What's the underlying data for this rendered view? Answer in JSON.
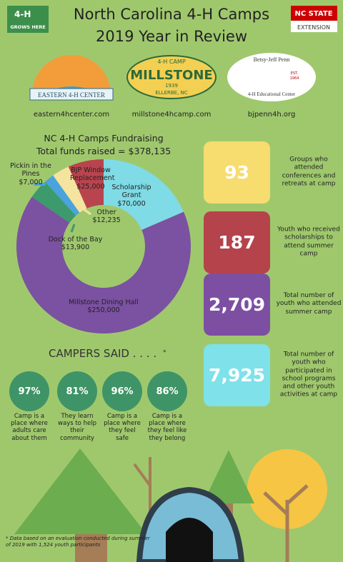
{
  "header": {
    "title_line1": "North Carolina 4-H Camps",
    "title_line2": "2019 Year in Review",
    "badge_4h": "4-H",
    "badge_grows": "GROWS HERE",
    "ncstate": "NC STATE",
    "extension": "EXTENSION"
  },
  "camps": [
    {
      "name": "EASTERN 4-H CENTER",
      "url": "eastern4hcenter.com"
    },
    {
      "top": "4-H CAMP",
      "name": "MILLSTONE",
      "year": "1939",
      "bottom": "ELLERBE, NC",
      "url": "millstone4hcamp.com"
    },
    {
      "name": "Betsy-Jeff Penn",
      "est": "EST.",
      "year": "1964",
      "sub": "4-H Educational Center",
      "url": "bjpenn4h.org"
    }
  ],
  "chart_data": {
    "type": "donut",
    "title": "NC 4-H Camps Fundraising",
    "subtitle": "Total funds raised = $378,135",
    "categories": [
      "Scholarship Grant",
      "Millstone Dining Hall",
      "Dock of the Bay",
      "Pickin in the Pines",
      "Other",
      "BJP Window Replacement"
    ],
    "values": [
      70000,
      250000,
      13900,
      7000,
      12235,
      25000
    ],
    "value_labels": [
      "$70,000",
      "$250,000",
      "$13,900",
      "$7,000",
      "$12,235",
      "$25,000"
    ],
    "colors": [
      "#7fdbe6",
      "#7b51a1",
      "#3c9a6c",
      "#4aa3dc",
      "#f5e3a0",
      "#b8444e"
    ]
  },
  "stats": [
    {
      "value": "93",
      "label": "Groups who attended conferences and retreats at camp",
      "color": "#f7dc6f"
    },
    {
      "value": "187",
      "label": "Youth who received scholarships to attend summer camp",
      "color": "#b5434b"
    },
    {
      "value": "2,709",
      "label": "Total number of youth who attended summer camp",
      "color": "#7d4fa3"
    },
    {
      "value": "7,925",
      "label": "Total number of youth who participated in school programs and other youth activities at camp",
      "color": "#7fe1ea"
    }
  ],
  "survey": {
    "title": "CAMPERS SAID . . . .",
    "mark": "*",
    "items": [
      {
        "percent": "97%",
        "text": "Camp is a place where adults care about them"
      },
      {
        "percent": "81%",
        "text": "They learn ways to help their community"
      },
      {
        "percent": "96%",
        "text": "Camp is a place where they feel safe"
      },
      {
        "percent": "86%",
        "text": "Camp is a place where they feel like they belong"
      }
    ]
  },
  "footnote": "* Data based on an evaluation conducted during summer of 2019 with 1,524 youth participants"
}
